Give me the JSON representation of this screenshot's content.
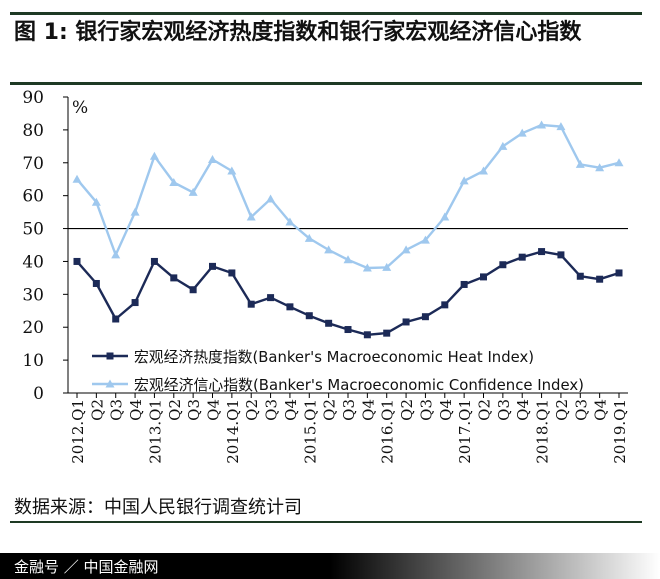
{
  "title": "图 1: 银行家宏观经济热度指数和银行家宏观经济信心指数",
  "source": "数据来源：中国人民银行调查统计司",
  "footer": "金融号 ／ 中国金融网",
  "colors": {
    "heat": "#1c2a57",
    "confidence": "#9fc8ee"
  },
  "chart_data": {
    "type": "line",
    "ylabel": "%",
    "ylim": [
      0,
      90
    ],
    "yticks": [
      0,
      10,
      20,
      30,
      40,
      50,
      60,
      70,
      80,
      90
    ],
    "grid": false,
    "legend_position": "bottom-inside",
    "x": [
      "2012.Q1",
      "Q2",
      "Q3",
      "Q4",
      "2013.Q1",
      "Q2",
      "Q3",
      "Q4",
      "2014.Q1",
      "Q2",
      "Q3",
      "Q4",
      "2015.Q1",
      "Q2",
      "Q3",
      "Q4",
      "2016.Q1",
      "Q2",
      "Q3",
      "Q4",
      "2017.Q1",
      "Q2",
      "Q3",
      "Q4",
      "2018.Q1",
      "Q2",
      "Q3",
      "Q4",
      "2019.Q1"
    ],
    "series": [
      {
        "name": "宏观经济热度指数(Banker's Macroeconomic Heat Index)",
        "values": [
          40,
          33.3,
          22.5,
          27.5,
          40,
          35,
          31.4,
          38.5,
          36.5,
          27,
          29,
          26.2,
          23.5,
          21.2,
          19.3,
          17.7,
          18.2,
          21.6,
          23.2,
          26.8,
          33,
          35.3,
          39,
          41.3,
          43,
          42,
          35.5,
          34.6,
          36.5
        ]
      },
      {
        "name": "宏观经济信心指数(Banker's Macroeconomic Confidence Index)",
        "values": [
          65,
          58,
          42,
          55,
          72,
          64,
          61,
          71,
          67.5,
          53.5,
          59,
          52,
          47,
          43.5,
          40.5,
          38,
          38.2,
          43.5,
          46.5,
          53.5,
          64.5,
          67.5,
          75,
          79,
          81.5,
          81,
          69.5,
          68.5,
          70
        ]
      }
    ]
  }
}
